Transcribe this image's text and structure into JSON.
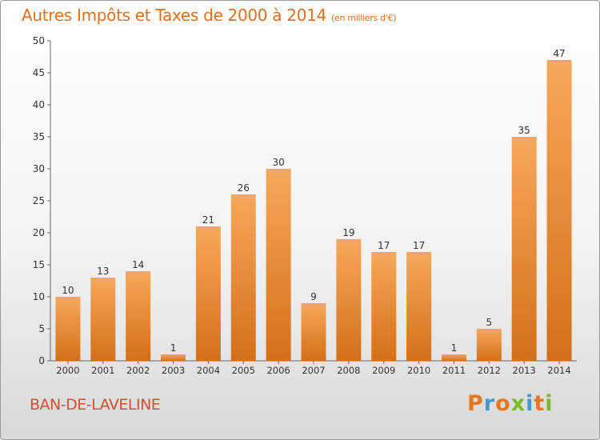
{
  "chart_data": {
    "type": "bar",
    "title": "Autres Impôts et Taxes de 2000 à 2014",
    "subtitle": "(en milliers d'€)",
    "categories": [
      "2000",
      "2001",
      "2002",
      "2003",
      "2004",
      "2005",
      "2006",
      "2007",
      "2008",
      "2009",
      "2010",
      "2011",
      "2012",
      "2013",
      "2014"
    ],
    "values": [
      10,
      13,
      14,
      1,
      21,
      26,
      30,
      9,
      19,
      17,
      17,
      1,
      5,
      35,
      47
    ],
    "ylim": [
      0,
      50
    ],
    "yticks": [
      0,
      5,
      10,
      15,
      20,
      25,
      30,
      35,
      40,
      45,
      50
    ],
    "grid": false,
    "bar_color_top": "#f7a85a",
    "bar_color_bottom": "#d56f17"
  },
  "footer": {
    "commune": "BAN-DE-LAVELINE",
    "logo": "Proxiti",
    "logo_colors": [
      "#e87722",
      "#3f9ad6",
      "#e87722",
      "#7ab929",
      "#3f9ad6",
      "#e87722",
      "#7ab929"
    ]
  }
}
